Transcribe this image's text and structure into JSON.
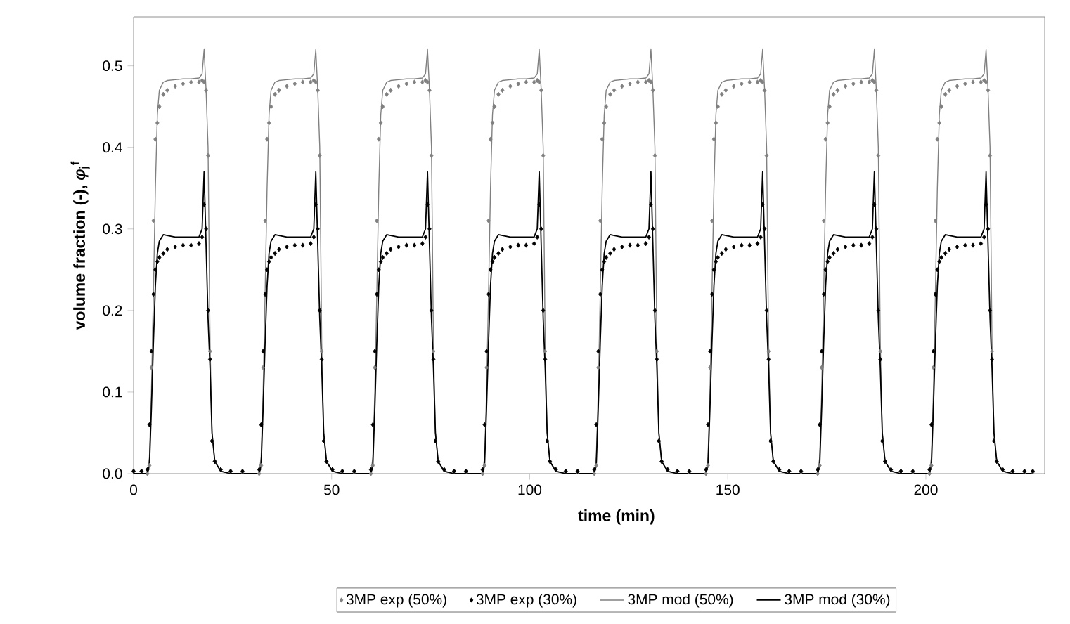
{
  "chart_data": {
    "type": "line",
    "xlabel": "time (min)",
    "ylabel": "volume fraction (-),  *φ*$_{j}$$^{f}$",
    "xlim": [
      0,
      230
    ],
    "ylim": [
      0,
      0.56
    ],
    "xticks": [
      0,
      50,
      100,
      150,
      200
    ],
    "yticks": [
      {
        "value": 0,
        "label": "0.0"
      },
      {
        "value": 0.1,
        "label": "0.1"
      },
      {
        "value": 0.2,
        "label": "0.2"
      },
      {
        "value": 0.3,
        "label": "0.3"
      },
      {
        "value": 0.4,
        "label": "0.4"
      },
      {
        "value": 0.5,
        "label": "0.5"
      }
    ],
    "legend": "bottom",
    "x": [
      0,
      2,
      3.5,
      4,
      4.5,
      5,
      5.5,
      6,
      6.5,
      7.5,
      8.5,
      10.5,
      12.5,
      14.5,
      16.5,
      17.3,
      17.8,
      18.3,
      18.8,
      19.3,
      19.8,
      20.5,
      22,
      24.5,
      27.5,
      31.7,
      32.2,
      32.7,
      33.2,
      33.7,
      34.2,
      34.7,
      35.7,
      36.7,
      38.7,
      40.7,
      42.7,
      44.7,
      45.5,
      46,
      46.5,
      47,
      47.5,
      48,
      48.7,
      50.2,
      52.7,
      55.7,
      59.9,
      60.4,
      60.9,
      61.4,
      61.9,
      62.4,
      62.9,
      63.9,
      64.9,
      66.9,
      68.9,
      70.9,
      72.9,
      73.7,
      74.2,
      74.7,
      75.2,
      75.7,
      76.2,
      76.9,
      78.4,
      80.9,
      83.9,
      88.1,
      88.6,
      89.1,
      89.6,
      90.1,
      90.6,
      91.1,
      92.1,
      93.1,
      95.1,
      97.1,
      99.1,
      101.1,
      101.9,
      102.4,
      102.9,
      103.4,
      103.9,
      104.4,
      105.1,
      106.6,
      109.1,
      112.1,
      116.3,
      116.8,
      117.3,
      117.8,
      118.3,
      118.8,
      119.3,
      120.3,
      121.3,
      123.3,
      125.3,
      127.3,
      129.3,
      130.1,
      130.6,
      131.1,
      131.6,
      132.1,
      132.6,
      133.3,
      134.8,
      137.3,
      140.3,
      144.5,
      145,
      145.5,
      146,
      146.5,
      147,
      147.5,
      148.5,
      149.5,
      151.5,
      153.5,
      155.5,
      157.5,
      158.3,
      158.8,
      159.3,
      159.8,
      160.3,
      160.8,
      161.5,
      163,
      165.5,
      168.5,
      172.7,
      173.2,
      173.7,
      174.2,
      174.7,
      175.2,
      175.7,
      176.7,
      177.7,
      179.7,
      181.7,
      183.7,
      185.7,
      186.5,
      187,
      187.5,
      188,
      188.5,
      189,
      189.7,
      191.2,
      193.7,
      196.7,
      200.9,
      201.4,
      201.9,
      202.4,
      202.9,
      203.4,
      203.9,
      204.9,
      205.9,
      207.9,
      209.9,
      211.9,
      213.9,
      214.7,
      215.2,
      215.7,
      216.2,
      216.7,
      217.2,
      217.9,
      219.4,
      221.9,
      224.9,
      227
    ],
    "series": [
      {
        "name": "3MP exp (50%)",
        "type": "scatter",
        "marker": "diamond",
        "color": "#808080",
        "values": [
          0.003,
          0.003,
          0,
          0.01,
          0.13,
          0.31,
          0.41,
          0.43,
          0.45,
          0.465,
          0.47,
          0.475,
          0.478,
          0.48,
          0.48,
          0.482,
          0.48,
          0.47,
          0.39,
          0.15,
          0.04,
          0.015,
          0.005,
          0.003,
          0.002,
          0,
          0.01,
          0.13,
          0.31,
          0.41,
          0.43,
          0.45,
          0.465,
          0.47,
          0.475,
          0.478,
          0.48,
          0.48,
          0.482,
          0.48,
          0.47,
          0.39,
          0.15,
          0.04,
          0.015,
          0.005,
          0.003,
          0.002,
          0,
          0.01,
          0.13,
          0.31,
          0.41,
          0.43,
          0.45,
          0.465,
          0.47,
          0.475,
          0.478,
          0.48,
          0.48,
          0.482,
          0.48,
          0.47,
          0.39,
          0.15,
          0.04,
          0.015,
          0.005,
          0.003,
          0.002,
          0,
          0.01,
          0.13,
          0.31,
          0.41,
          0.43,
          0.45,
          0.465,
          0.47,
          0.475,
          0.478,
          0.48,
          0.48,
          0.482,
          0.48,
          0.47,
          0.39,
          0.15,
          0.04,
          0.015,
          0.005,
          0.003,
          0.002,
          0,
          0.01,
          0.13,
          0.31,
          0.41,
          0.43,
          0.45,
          0.465,
          0.47,
          0.475,
          0.478,
          0.48,
          0.48,
          0.482,
          0.48,
          0.47,
          0.39,
          0.15,
          0.04,
          0.015,
          0.005,
          0.003,
          0.002,
          0,
          0.01,
          0.13,
          0.31,
          0.41,
          0.43,
          0.45,
          0.465,
          0.47,
          0.475,
          0.478,
          0.48,
          0.48,
          0.482,
          0.48,
          0.47,
          0.39,
          0.15,
          0.04,
          0.015,
          0.005,
          0.003,
          0.002,
          0,
          0.01,
          0.13,
          0.31,
          0.41,
          0.43,
          0.45,
          0.465,
          0.47,
          0.475,
          0.478,
          0.48,
          0.48,
          0.482,
          0.48,
          0.47,
          0.39,
          0.15,
          0.04,
          0.015,
          0.005,
          0.003,
          0.002,
          0,
          0.01,
          0.13,
          0.31,
          0.41,
          0.43,
          0.45,
          0.465,
          0.47,
          0.475,
          0.478,
          0.48,
          0.48,
          0.482,
          0.48,
          0.47,
          0.39,
          0.15,
          0.04,
          0.015,
          0.005,
          0.003,
          0.002,
          0.002
        ]
      },
      {
        "name": "3MP exp (30%)",
        "type": "scatter",
        "marker": "diamond",
        "color": "#000000",
        "values": [
          0.003,
          0.003,
          0.005,
          0.06,
          0.15,
          0.22,
          0.25,
          0.26,
          0.265,
          0.27,
          0.275,
          0.278,
          0.28,
          0.28,
          0.282,
          0.29,
          0.33,
          0.3,
          0.2,
          0.14,
          0.04,
          0.015,
          0.005,
          0.003,
          0.003,
          0.005,
          0.06,
          0.15,
          0.22,
          0.25,
          0.26,
          0.265,
          0.27,
          0.275,
          0.278,
          0.28,
          0.28,
          0.282,
          0.29,
          0.33,
          0.3,
          0.2,
          0.14,
          0.04,
          0.015,
          0.005,
          0.003,
          0.003,
          0.005,
          0.06,
          0.15,
          0.22,
          0.25,
          0.26,
          0.265,
          0.27,
          0.275,
          0.278,
          0.28,
          0.28,
          0.282,
          0.29,
          0.33,
          0.3,
          0.2,
          0.14,
          0.04,
          0.015,
          0.005,
          0.003,
          0.003,
          0.005,
          0.06,
          0.15,
          0.22,
          0.25,
          0.26,
          0.265,
          0.27,
          0.275,
          0.278,
          0.28,
          0.28,
          0.282,
          0.29,
          0.33,
          0.3,
          0.2,
          0.14,
          0.04,
          0.015,
          0.005,
          0.003,
          0.003,
          0.005,
          0.06,
          0.15,
          0.22,
          0.25,
          0.26,
          0.265,
          0.27,
          0.275,
          0.278,
          0.28,
          0.28,
          0.282,
          0.29,
          0.33,
          0.3,
          0.2,
          0.14,
          0.04,
          0.015,
          0.005,
          0.003,
          0.003,
          0.005,
          0.06,
          0.15,
          0.22,
          0.25,
          0.26,
          0.265,
          0.27,
          0.275,
          0.278,
          0.28,
          0.28,
          0.282,
          0.29,
          0.33,
          0.3,
          0.2,
          0.14,
          0.04,
          0.015,
          0.005,
          0.003,
          0.003,
          0.005,
          0.06,
          0.15,
          0.22,
          0.25,
          0.26,
          0.265,
          0.27,
          0.275,
          0.278,
          0.28,
          0.28,
          0.282,
          0.29,
          0.33,
          0.3,
          0.2,
          0.14,
          0.04,
          0.015,
          0.005,
          0.003,
          0.003,
          0.005,
          0.06,
          0.15,
          0.22,
          0.25,
          0.26,
          0.265,
          0.27,
          0.275,
          0.278,
          0.28,
          0.28,
          0.282,
          0.29,
          0.33,
          0.3,
          0.2,
          0.14,
          0.04,
          0.015,
          0.005,
          0.003,
          0.003,
          0.003
        ]
      },
      {
        "name": "3MP mod (50%)",
        "type": "line",
        "marker": "none",
        "color": "#808080",
        "values": [
          0,
          0,
          0,
          0.02,
          0.1,
          0.22,
          0.35,
          0.44,
          0.47,
          0.48,
          0.482,
          0.483,
          0.484,
          0.484,
          0.485,
          0.49,
          0.52,
          0.47,
          0.4,
          0.16,
          0.05,
          0.015,
          0.003,
          0,
          0,
          0,
          0.02,
          0.1,
          0.22,
          0.35,
          0.44,
          0.47,
          0.48,
          0.482,
          0.483,
          0.484,
          0.484,
          0.485,
          0.49,
          0.52,
          0.47,
          0.4,
          0.16,
          0.05,
          0.015,
          0.003,
          0,
          0,
          0,
          0.02,
          0.1,
          0.22,
          0.35,
          0.44,
          0.47,
          0.48,
          0.482,
          0.483,
          0.484,
          0.484,
          0.485,
          0.49,
          0.52,
          0.47,
          0.4,
          0.16,
          0.05,
          0.015,
          0.003,
          0,
          0,
          0,
          0.02,
          0.1,
          0.22,
          0.35,
          0.44,
          0.47,
          0.48,
          0.482,
          0.483,
          0.484,
          0.484,
          0.485,
          0.49,
          0.52,
          0.47,
          0.4,
          0.16,
          0.05,
          0.015,
          0.003,
          0,
          0,
          0,
          0.02,
          0.1,
          0.22,
          0.35,
          0.44,
          0.47,
          0.48,
          0.482,
          0.483,
          0.484,
          0.484,
          0.485,
          0.49,
          0.52,
          0.47,
          0.4,
          0.16,
          0.05,
          0.015,
          0.003,
          0,
          0,
          0,
          0.02,
          0.1,
          0.22,
          0.35,
          0.44,
          0.47,
          0.48,
          0.482,
          0.483,
          0.484,
          0.484,
          0.485,
          0.49,
          0.52,
          0.47,
          0.4,
          0.16,
          0.05,
          0.015,
          0.003,
          0,
          0,
          0,
          0.02,
          0.1,
          0.22,
          0.35,
          0.44,
          0.47,
          0.48,
          0.482,
          0.483,
          0.484,
          0.484,
          0.485,
          0.49,
          0.52,
          0.47,
          0.4,
          0.16,
          0.05,
          0.015,
          0.003,
          0,
          0,
          0,
          0.02,
          0.1,
          0.22,
          0.35,
          0.44,
          0.47,
          0.48,
          0.482,
          0.483,
          0.484,
          0.484,
          0.485,
          0.49,
          0.52,
          0.47,
          0.4,
          0.16,
          0.05,
          0.015,
          0.003,
          0,
          0,
          0
        ]
      },
      {
        "name": "3MP mod (30%)",
        "type": "line",
        "marker": "none",
        "color": "#000000",
        "values": [
          0,
          0,
          0,
          0.01,
          0.08,
          0.16,
          0.23,
          0.27,
          0.285,
          0.293,
          0.292,
          0.29,
          0.29,
          0.29,
          0.29,
          0.3,
          0.37,
          0.28,
          0.19,
          0.13,
          0.05,
          0.015,
          0.003,
          0,
          0,
          0,
          0.01,
          0.08,
          0.16,
          0.23,
          0.27,
          0.285,
          0.293,
          0.292,
          0.29,
          0.29,
          0.29,
          0.29,
          0.3,
          0.37,
          0.28,
          0.19,
          0.13,
          0.05,
          0.015,
          0.003,
          0,
          0,
          0,
          0.01,
          0.08,
          0.16,
          0.23,
          0.27,
          0.285,
          0.293,
          0.292,
          0.29,
          0.29,
          0.29,
          0.29,
          0.3,
          0.37,
          0.28,
          0.19,
          0.13,
          0.05,
          0.015,
          0.003,
          0,
          0,
          0,
          0.01,
          0.08,
          0.16,
          0.23,
          0.27,
          0.285,
          0.293,
          0.292,
          0.29,
          0.29,
          0.29,
          0.29,
          0.3,
          0.37,
          0.28,
          0.19,
          0.13,
          0.05,
          0.015,
          0.003,
          0,
          0,
          0,
          0.01,
          0.08,
          0.16,
          0.23,
          0.27,
          0.285,
          0.293,
          0.292,
          0.29,
          0.29,
          0.29,
          0.29,
          0.3,
          0.37,
          0.28,
          0.19,
          0.13,
          0.05,
          0.015,
          0.003,
          0,
          0,
          0,
          0.01,
          0.08,
          0.16,
          0.23,
          0.27,
          0.285,
          0.293,
          0.292,
          0.29,
          0.29,
          0.29,
          0.29,
          0.3,
          0.37,
          0.28,
          0.19,
          0.13,
          0.05,
          0.015,
          0.003,
          0,
          0,
          0,
          0.01,
          0.08,
          0.16,
          0.23,
          0.27,
          0.285,
          0.293,
          0.292,
          0.29,
          0.29,
          0.29,
          0.29,
          0.3,
          0.37,
          0.28,
          0.19,
          0.13,
          0.05,
          0.015,
          0.003,
          0,
          0,
          0,
          0.01,
          0.08,
          0.16,
          0.23,
          0.27,
          0.285,
          0.293,
          0.292,
          0.29,
          0.29,
          0.29,
          0.29,
          0.3,
          0.37,
          0.28,
          0.19,
          0.13,
          0.05,
          0.015,
          0.003,
          0,
          0,
          0
        ]
      }
    ]
  }
}
